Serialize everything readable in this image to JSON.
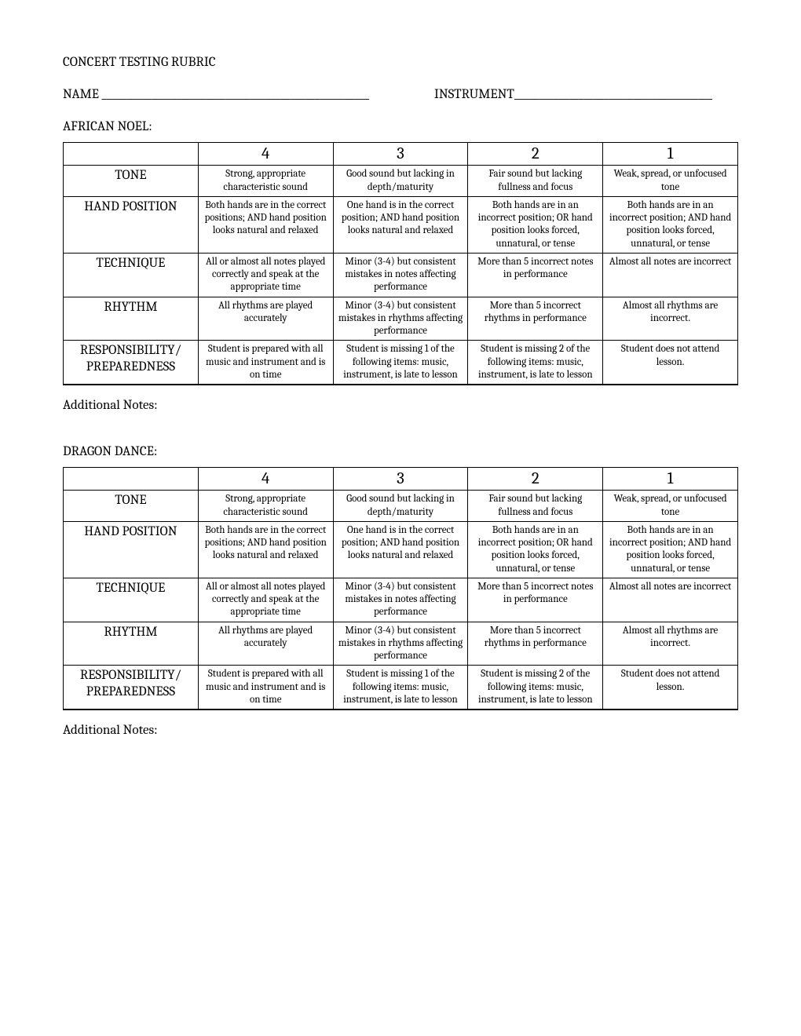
{
  "title": "CONCERT TESTING RUBRIC",
  "name_label": "NAME ______________________________________________________",
  "instrument_label": "INSTRUMENT________________________________________",
  "notes_label": "Additional Notes:",
  "songs": [
    {
      "title": "AFRICAN NOEL:"
    },
    {
      "title": "DRAGON DANCE:"
    }
  ],
  "scores": [
    "4",
    "3",
    "2",
    "1"
  ],
  "criteria": [
    {
      "name": "TONE",
      "cells": [
        "Strong, appropriate characteristic sound",
        "Good sound but lacking in depth/maturity",
        "Fair sound but lacking fullness and focus",
        "Weak, spread, or unfocused tone"
      ]
    },
    {
      "name": "HAND POSITION",
      "cells": [
        "Both hands are in the correct positions; AND hand position looks natural and relaxed",
        "One hand is in the correct position; AND hand position looks natural and relaxed",
        "Both hands are in an incorrect position; OR hand position looks forced, unnatural, or tense",
        "Both hands are in an incorrect position; AND hand position looks forced, unnatural, or tense"
      ]
    },
    {
      "name": "TECHNIQUE",
      "cells": [
        "All or almost all notes played correctly and speak at the appropriate time",
        "Minor (3-4) but consistent mistakes in notes affecting performance",
        "More than 5 incorrect notes in performance",
        "Almost all notes are incorrect"
      ]
    },
    {
      "name": "RHYTHM",
      "cells": [
        "All rhythms are played accurately",
        "Minor (3-4) but consistent mistakes in rhythms affecting performance",
        "More than 5 incorrect rhythms in performance",
        "Almost all rhythms are incorrect."
      ]
    },
    {
      "name": "RESPONSIBILITY/ PREPAREDNESS",
      "cells": [
        "Student is prepared with all music and instrument and is on time",
        "Student is missing 1 of the following items: music, instrument, is late to lesson",
        "Student is missing 2 of the following items: music, instrument, is late to lesson",
        "Student does not attend lesson."
      ]
    }
  ]
}
